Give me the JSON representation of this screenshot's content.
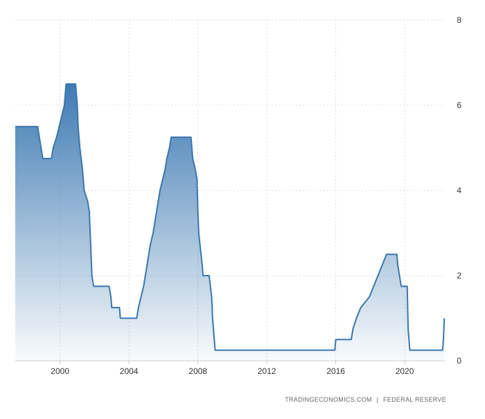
{
  "chart_data": {
    "type": "area",
    "title": "",
    "xlabel": "",
    "ylabel": "",
    "xlim": [
      1997.4,
      2022.33
    ],
    "ylim": [
      0,
      8
    ],
    "y_ticks": [
      0,
      2,
      4,
      6,
      8
    ],
    "x_ticks": [
      2000,
      2004,
      2008,
      2012,
      2016,
      2020
    ],
    "y_axis_side": "right",
    "grid": "dotted",
    "legend": "none",
    "series": [
      {
        "color": "#3a76ad",
        "points": [
          [
            1997.4,
            5.5
          ],
          [
            1998.7,
            5.5
          ],
          [
            1998.8,
            5.25
          ],
          [
            1998.9,
            5.0
          ],
          [
            1999.0,
            4.75
          ],
          [
            1999.4,
            4.75
          ],
          [
            1999.5,
            4.75
          ],
          [
            1999.6,
            5.0
          ],
          [
            1999.8,
            5.25
          ],
          [
            1999.95,
            5.5
          ],
          [
            2000.1,
            5.75
          ],
          [
            2000.25,
            6.0
          ],
          [
            2000.35,
            6.5
          ],
          [
            2000.9,
            6.5
          ],
          [
            2001.0,
            6.0
          ],
          [
            2001.05,
            5.5
          ],
          [
            2001.15,
            5.0
          ],
          [
            2001.3,
            4.5
          ],
          [
            2001.4,
            4.0
          ],
          [
            2001.6,
            3.75
          ],
          [
            2001.7,
            3.5
          ],
          [
            2001.75,
            3.0
          ],
          [
            2001.8,
            2.5
          ],
          [
            2001.85,
            2.0
          ],
          [
            2001.95,
            1.75
          ],
          [
            2002.85,
            1.75
          ],
          [
            2002.95,
            1.5
          ],
          [
            2003.0,
            1.25
          ],
          [
            2003.45,
            1.25
          ],
          [
            2003.5,
            1.0
          ],
          [
            2004.45,
            1.0
          ],
          [
            2004.55,
            1.25
          ],
          [
            2004.7,
            1.5
          ],
          [
            2004.85,
            1.75
          ],
          [
            2004.95,
            2.0
          ],
          [
            2005.05,
            2.25
          ],
          [
            2005.15,
            2.5
          ],
          [
            2005.25,
            2.75
          ],
          [
            2005.4,
            3.0
          ],
          [
            2005.5,
            3.25
          ],
          [
            2005.6,
            3.5
          ],
          [
            2005.7,
            3.75
          ],
          [
            2005.8,
            4.0
          ],
          [
            2005.95,
            4.25
          ],
          [
            2006.1,
            4.5
          ],
          [
            2006.2,
            4.75
          ],
          [
            2006.35,
            5.0
          ],
          [
            2006.45,
            5.25
          ],
          [
            2007.6,
            5.25
          ],
          [
            2007.7,
            4.75
          ],
          [
            2007.85,
            4.5
          ],
          [
            2007.95,
            4.25
          ],
          [
            2008.0,
            3.5
          ],
          [
            2008.05,
            3.0
          ],
          [
            2008.25,
            2.25
          ],
          [
            2008.3,
            2.0
          ],
          [
            2008.65,
            2.0
          ],
          [
            2008.8,
            1.5
          ],
          [
            2008.85,
            1.0
          ],
          [
            2008.95,
            0.5
          ],
          [
            2009.0,
            0.25
          ],
          [
            2015.95,
            0.25
          ],
          [
            2016.0,
            0.5
          ],
          [
            2016.9,
            0.5
          ],
          [
            2017.0,
            0.75
          ],
          [
            2017.2,
            1.0
          ],
          [
            2017.45,
            1.25
          ],
          [
            2017.95,
            1.5
          ],
          [
            2018.2,
            1.75
          ],
          [
            2018.45,
            2.0
          ],
          [
            2018.7,
            2.25
          ],
          [
            2018.95,
            2.5
          ],
          [
            2019.55,
            2.5
          ],
          [
            2019.6,
            2.25
          ],
          [
            2019.7,
            2.0
          ],
          [
            2019.8,
            1.75
          ],
          [
            2020.15,
            1.75
          ],
          [
            2020.2,
            0.75
          ],
          [
            2020.3,
            0.25
          ],
          [
            2022.2,
            0.25
          ],
          [
            2022.25,
            0.5
          ],
          [
            2022.3,
            1.0
          ]
        ]
      }
    ]
  },
  "source": {
    "site": "TRADINGECONOMICS.COM",
    "separator": "|",
    "publisher": "FEDERAL RESERVE"
  }
}
